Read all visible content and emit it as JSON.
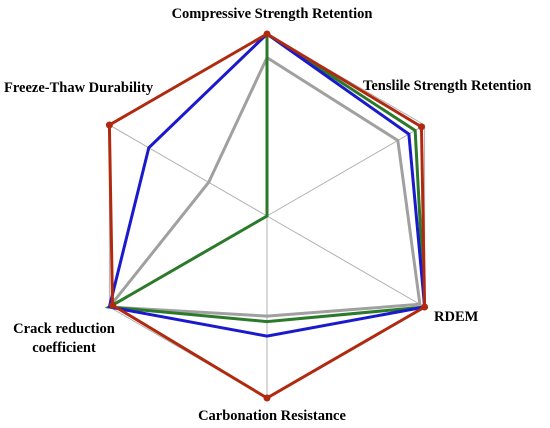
{
  "chart_data": {
    "type": "radar",
    "title": "",
    "axes": [
      "Compressive Strength Retention",
      "Tenslile Strength Retention",
      "RDEM",
      "Carbonation Resistance",
      "Crack reduction\ncoefficient",
      "Freeze-Thaw Durability"
    ],
    "range": [
      0,
      1
    ],
    "grid": true,
    "legend": "none",
    "series": [
      {
        "color": "#a0a0a0",
        "values": [
          0.87,
          0.83,
          0.97,
          0.55,
          1.0,
          0.37
        ]
      },
      {
        "color": "#2a7a2a",
        "values": [
          1.0,
          0.94,
          1.0,
          0.58,
          1.0,
          0.0
        ]
      },
      {
        "color": "#1a1acc",
        "values": [
          1.0,
          0.9,
          1.0,
          0.66,
          1.0,
          0.75
        ]
      },
      {
        "color": "#b02a10",
        "values": [
          1.0,
          0.98,
          1.0,
          1.0,
          0.98,
          1.0
        ]
      }
    ]
  }
}
